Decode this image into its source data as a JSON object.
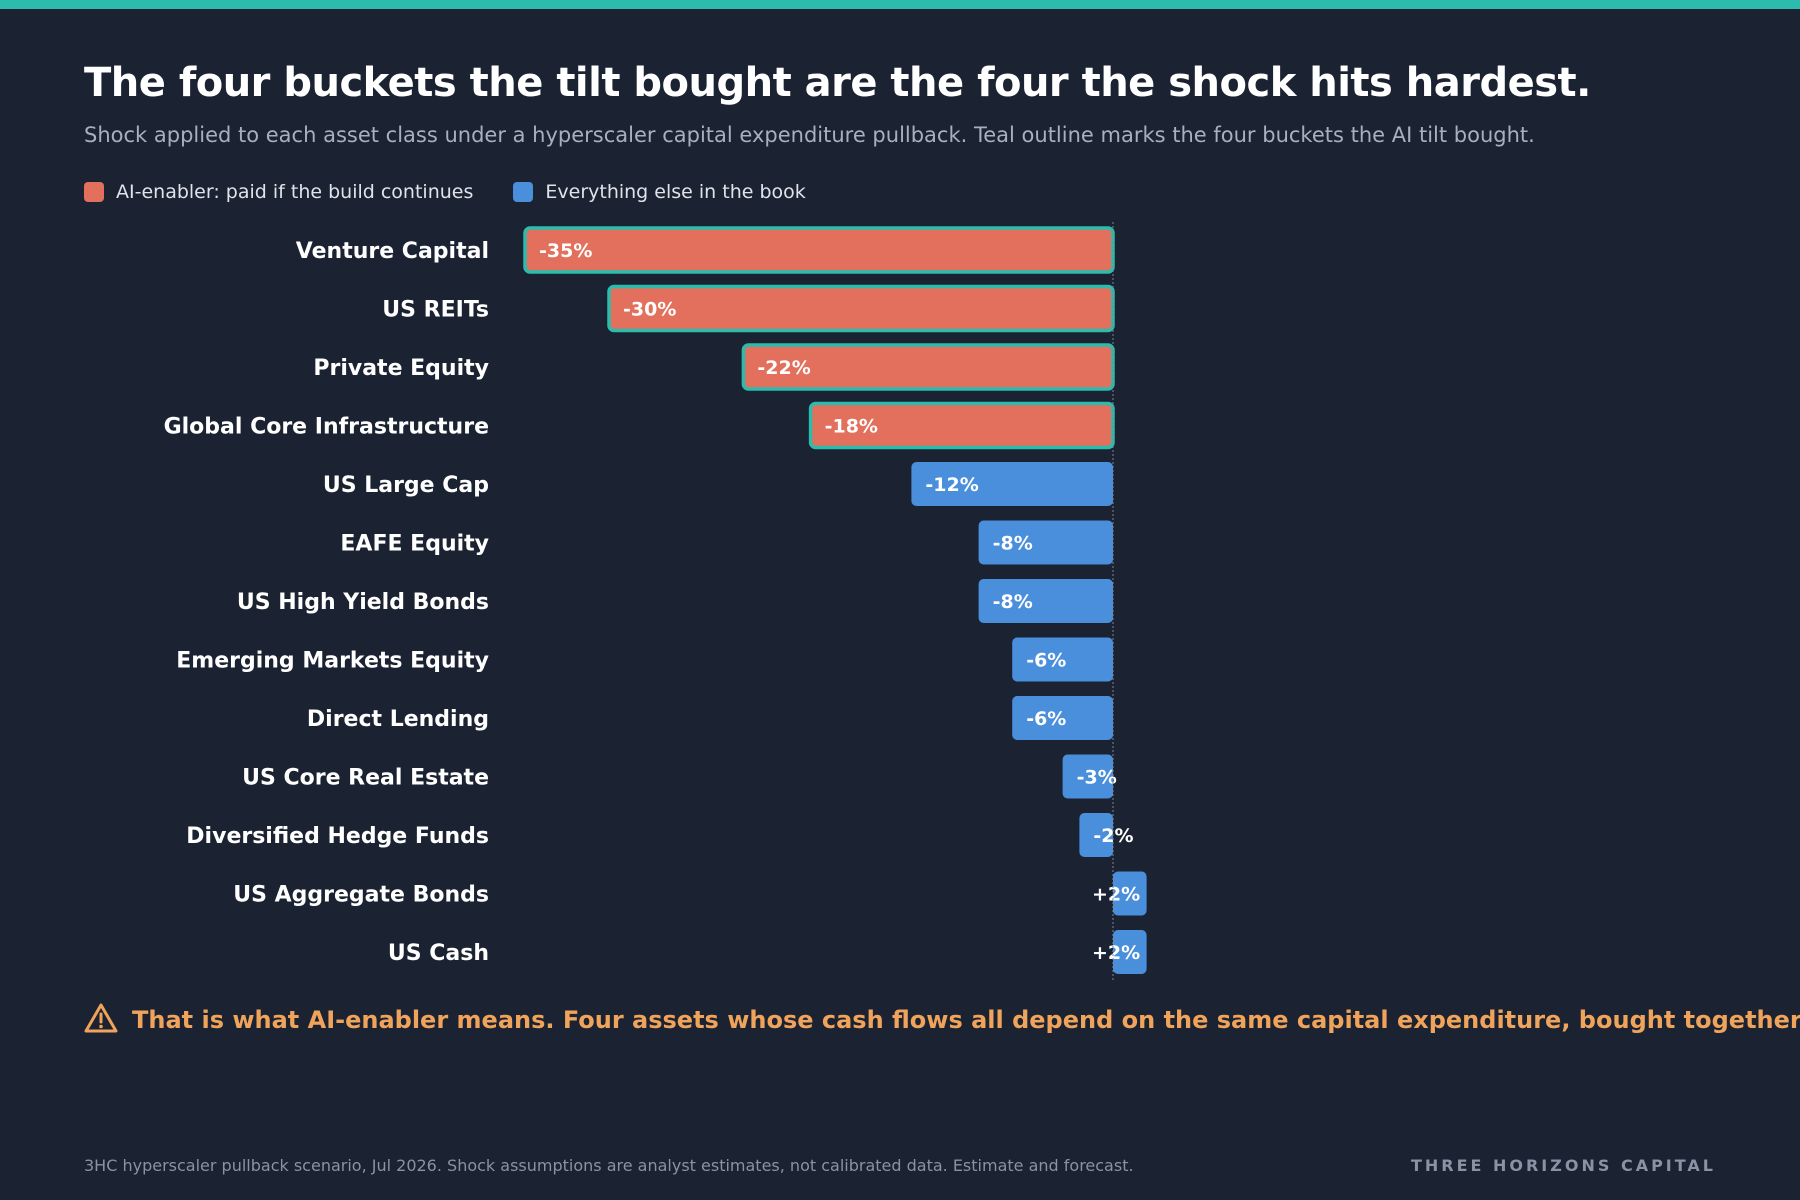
{
  "header": {
    "title": "The four buckets the tilt bought are the four the shock hits hardest.",
    "subtitle": "Shock applied to each asset class under a hyperscaler capital expenditure pullback. Teal outline marks the four buckets the AI tilt bought."
  },
  "legend": {
    "items": [
      {
        "label": "AI-enabler: paid if the build continues",
        "color": "#e2705c"
      },
      {
        "label": "Everything else in the book",
        "color": "#4a8fdc"
      }
    ]
  },
  "colors": {
    "ai_enabler": "#e2705c",
    "other": "#4a8fdc",
    "highlight_outline": "#2bbcad",
    "background": "#1b2231",
    "warning": "#f0a35a"
  },
  "chart_data": {
    "type": "bar",
    "orientation": "horizontal",
    "categories": [
      "Venture Capital",
      "US REITs",
      "Private Equity",
      "Global Core Infrastructure",
      "US Large Cap",
      "EAFE Equity",
      "US High Yield Bonds",
      "Emerging Markets Equity",
      "Direct Lending",
      "US Core Real Estate",
      "Diversified Hedge Funds",
      "US Aggregate Bonds",
      "US Cash"
    ],
    "values": [
      -35,
      -30,
      -22,
      -18,
      -12,
      -8,
      -8,
      -6,
      -6,
      -3,
      -2,
      2,
      2
    ],
    "labels": [
      "-35%",
      "-30%",
      "-22%",
      "-18%",
      "-12%",
      "-8%",
      "-8%",
      "-6%",
      "-6%",
      "-3%",
      "-2%",
      "+2%",
      "+2%"
    ],
    "group": [
      "ai",
      "ai",
      "ai",
      "ai",
      "other",
      "other",
      "other",
      "other",
      "other",
      "other",
      "other",
      "other",
      "other"
    ],
    "highlighted": [
      true,
      true,
      true,
      true,
      false,
      false,
      false,
      false,
      false,
      false,
      false,
      false,
      false
    ],
    "xlim": [
      -35,
      2
    ],
    "unit": "%",
    "grid": false,
    "legend_position": "top-left"
  },
  "note": {
    "icon": "warning-icon",
    "text": "That is what AI-enabler means. Four assets whose cash flows all depend on the same capital expenditure, bought together."
  },
  "footer": {
    "source": "3HC hyperscaler pullback scenario, Jul 2026. Shock assumptions are analyst estimates, not calibrated data. Estimate and forecast.",
    "brand": "THREE HORIZONS CAPITAL"
  }
}
